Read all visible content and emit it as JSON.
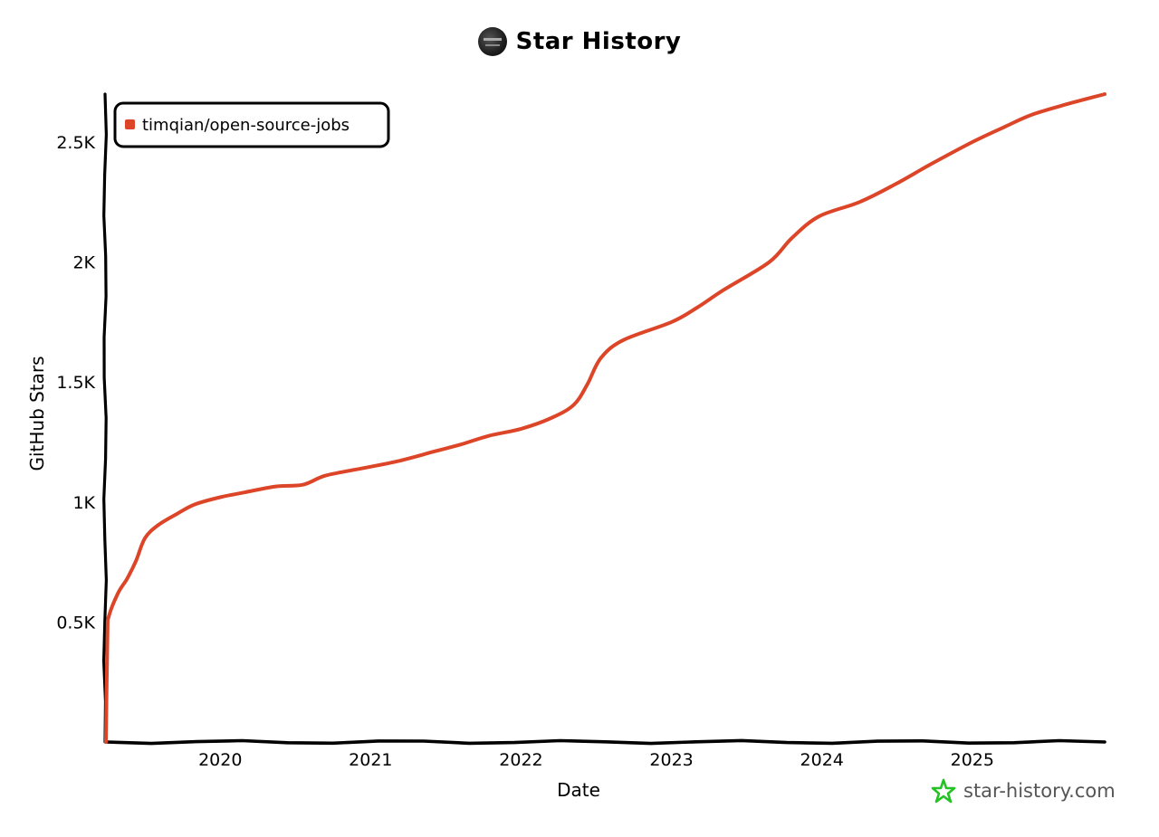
{
  "header": {
    "title": "Star History",
    "avatar_icon": "avatar-icon"
  },
  "watermark": {
    "text": "star-history.com",
    "icon": "star-icon",
    "icon_color": "#22c322"
  },
  "colors": {
    "series": "#dd4528",
    "axis": "#000000",
    "watermark_text": "#555555"
  },
  "chart_data": {
    "type": "line",
    "title": "Star History",
    "xlabel": "Date",
    "ylabel": "GitHub Stars",
    "x_ticks": [
      "2020",
      "2021",
      "2022",
      "2023",
      "2024",
      "2025"
    ],
    "y_ticks": [
      "0.5K",
      "1K",
      "1.5K",
      "2K",
      "2.5K"
    ],
    "y_tick_values": [
      500,
      1000,
      1500,
      2000,
      2500
    ],
    "xlim": [
      2019.24,
      2025.88
    ],
    "ylim": [
      0,
      2700
    ],
    "grid": false,
    "legend_position": "top-left",
    "series": [
      {
        "name": "timqian/open-source-jobs",
        "color": "#dd4528",
        "x": [
          2019.24,
          2019.25,
          2019.26,
          2019.32,
          2019.38,
          2019.44,
          2019.5,
          2019.59,
          2019.71,
          2019.83,
          2020.0,
          2020.16,
          2020.37,
          2020.55,
          2020.7,
          2020.94,
          2021.18,
          2021.42,
          2021.6,
          2021.78,
          2022.0,
          2022.2,
          2022.35,
          2022.44,
          2022.53,
          2022.68,
          2023.0,
          2023.17,
          2023.35,
          2023.65,
          2023.8,
          2023.98,
          2024.25,
          2024.49,
          2024.73,
          2025.0,
          2025.22,
          2025.4,
          2025.64,
          2025.88
        ],
        "values": [
          0,
          450,
          525,
          620,
          680,
          755,
          850,
          905,
          950,
          990,
          1020,
          1040,
          1065,
          1072,
          1110,
          1140,
          1170,
          1210,
          1240,
          1275,
          1305,
          1350,
          1405,
          1490,
          1600,
          1675,
          1750,
          1810,
          1885,
          2000,
          2100,
          2190,
          2250,
          2325,
          2410,
          2500,
          2565,
          2615,
          2660,
          2700
        ]
      }
    ]
  }
}
